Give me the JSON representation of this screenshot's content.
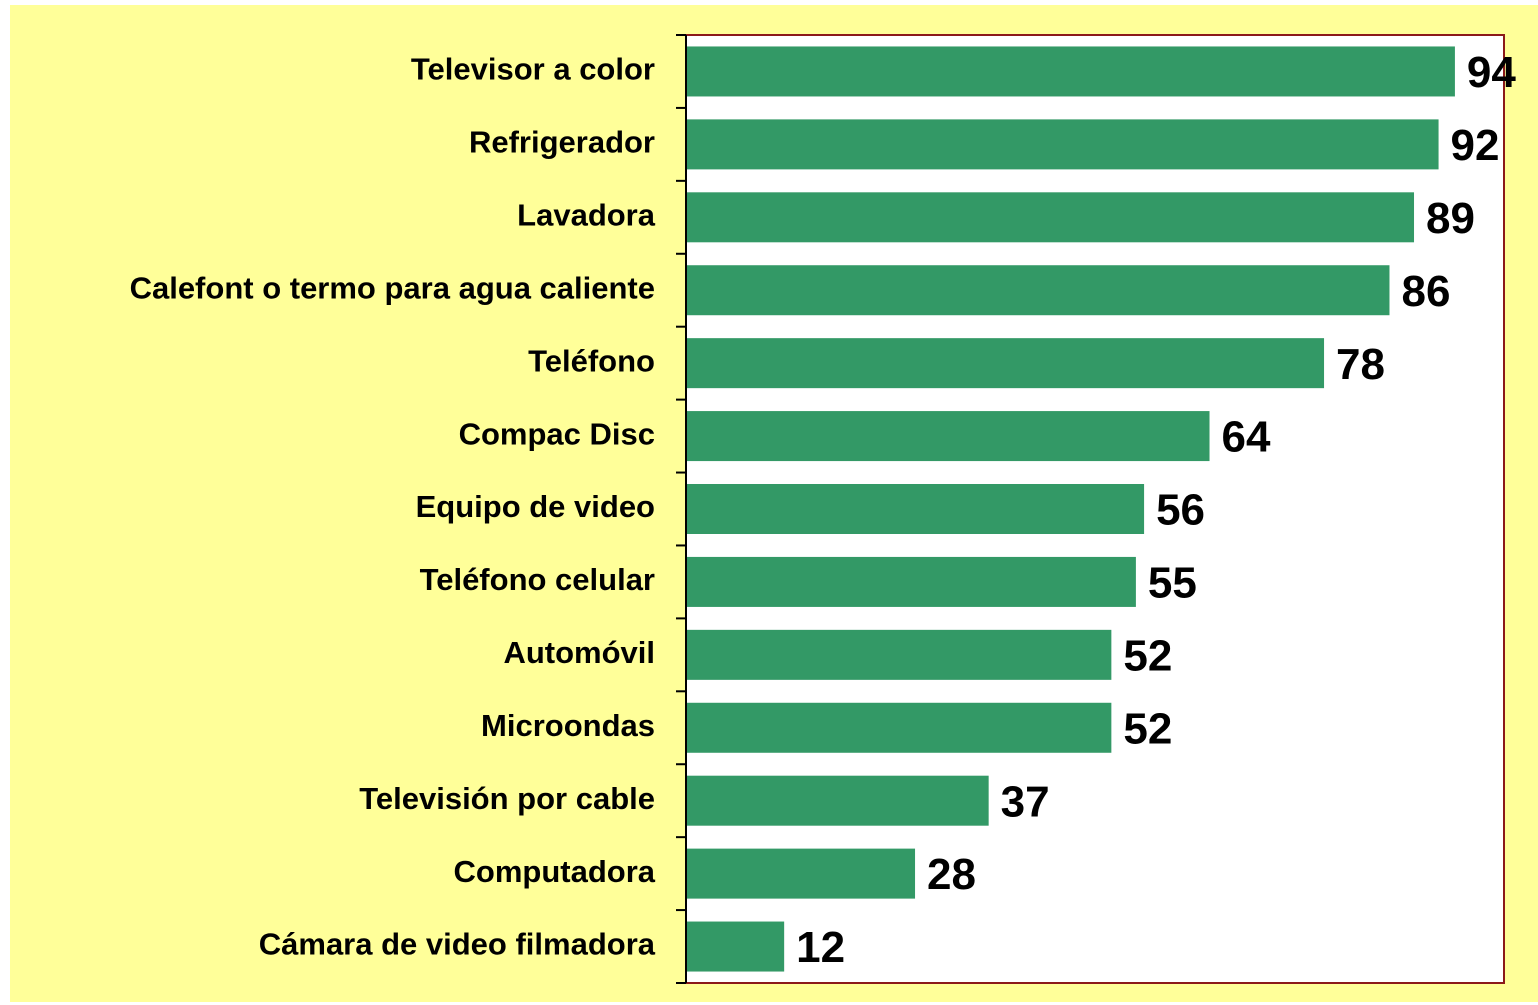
{
  "chart_data": {
    "type": "barh",
    "categories": [
      "Televisor a color",
      "Refrigerador",
      "Lavadora",
      "Calefont o termo para agua caliente",
      "Teléfono",
      "Compac Disc",
      "Equipo de video",
      "Teléfono celular",
      "Automóvil",
      "Microondas",
      "Televisión por cable",
      "Computadora",
      "Cámara de video filmadora"
    ],
    "values": [
      94,
      92,
      89,
      86,
      78,
      64,
      56,
      55,
      52,
      52,
      37,
      28,
      12
    ],
    "color": "#339966",
    "xlim": [
      0,
      100
    ]
  }
}
